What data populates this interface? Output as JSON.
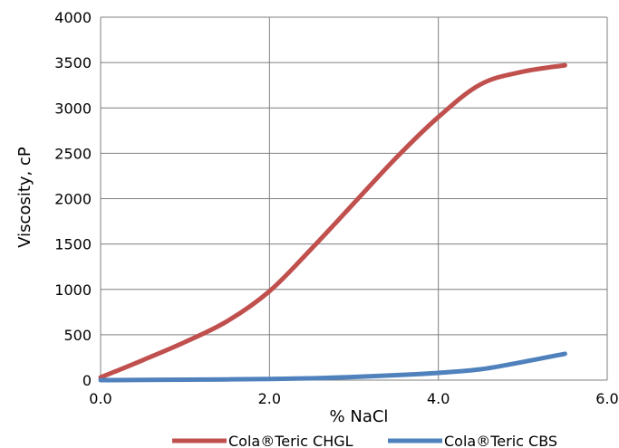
{
  "chart_data": {
    "type": "line",
    "xlabel": "% NaCl",
    "ylabel": "Viscosity, cP",
    "xlim": [
      0,
      6
    ],
    "ylim": [
      0,
      4000
    ],
    "x_ticks": [
      0,
      2,
      4,
      6
    ],
    "x_tick_labels": [
      "0.0",
      "2.0",
      "4.0",
      "6.0"
    ],
    "y_ticks": [
      0,
      500,
      1000,
      1500,
      2000,
      2500,
      3000,
      3500,
      4000
    ],
    "y_tick_labels": [
      "0",
      "500",
      "1000",
      "1500",
      "2000",
      "2500",
      "3000",
      "3500",
      "4000"
    ],
    "grid": "vertical-and-horizontal",
    "legend_position": "bottom",
    "series": [
      {
        "name": "Cola®Teric CHGL",
        "color": "#c0504d",
        "x": [
          0,
          0.5,
          1.0,
          1.5,
          2.0,
          2.5,
          3.0,
          3.5,
          4.0,
          4.5,
          5.0,
          5.5
        ],
        "values": [
          30,
          220,
          420,
          650,
          980,
          1450,
          1950,
          2450,
          2900,
          3260,
          3400,
          3470
        ]
      },
      {
        "name": "Cola®Teric CBS",
        "color": "#4f81bd",
        "x": [
          0,
          0.5,
          1.0,
          1.5,
          2.0,
          2.5,
          3.0,
          3.5,
          4.0,
          4.5,
          5.0,
          5.5
        ],
        "values": [
          0,
          2,
          5,
          8,
          12,
          20,
          35,
          55,
          80,
          120,
          200,
          290
        ]
      }
    ]
  }
}
